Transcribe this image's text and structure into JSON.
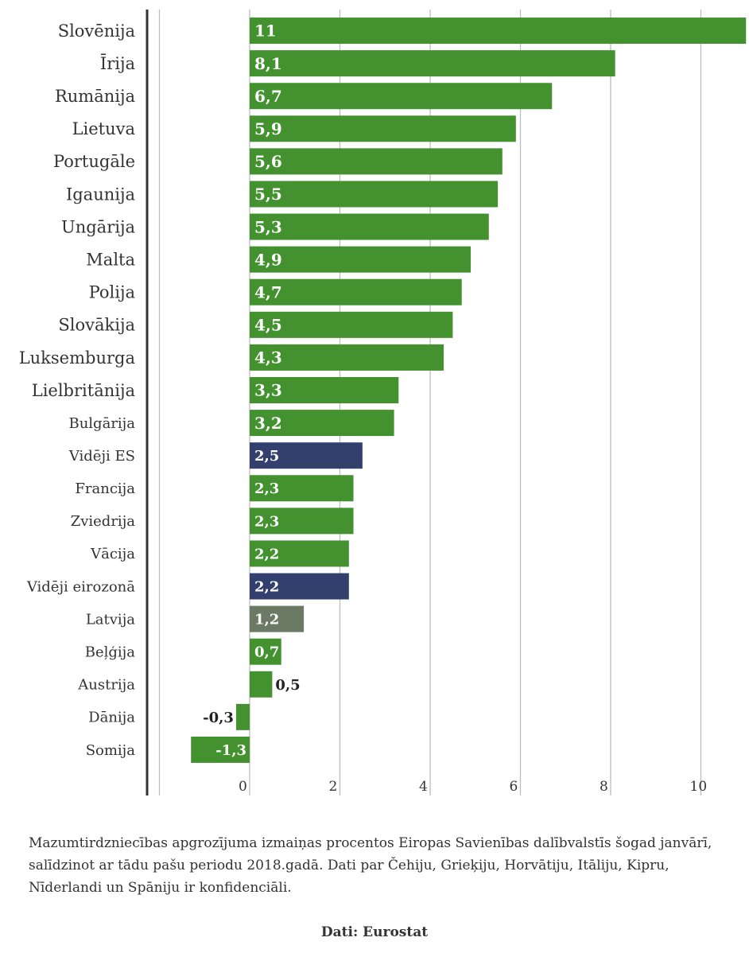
{
  "chart_data": {
    "type": "bar",
    "orientation": "horizontal",
    "categories": [
      "Slovēnija",
      "Īrija",
      "Rumānija",
      "Lietuva",
      "Portugāle",
      "Igaunija",
      "Ungārija",
      "Malta",
      "Polija",
      "Slovākija",
      "Luksemburga",
      "Lielbritānija",
      "Bulgārija",
      "Vidēji ES",
      "Francija",
      "Zviedrija",
      "Vācija",
      "Vidēji eirozonā",
      "Latvija",
      "Beļģija",
      "Austrija",
      "Dānija",
      "Somija"
    ],
    "values": [
      11,
      8.1,
      6.7,
      5.9,
      5.6,
      5.5,
      5.3,
      4.9,
      4.7,
      4.5,
      4.3,
      3.3,
      3.2,
      2.5,
      2.3,
      2.3,
      2.2,
      2.2,
      1.2,
      0.7,
      0.5,
      -0.3,
      -1.3
    ],
    "value_labels": [
      "11",
      "8,1",
      "6,7",
      "5,9",
      "5,6",
      "5,5",
      "5,3",
      "4,9",
      "4,7",
      "4,5",
      "4,3",
      "3,3",
      "3,2",
      "2,5",
      "2,3",
      "2,3",
      "2,2",
      "2,2",
      "1,2",
      "0,7",
      "0,5",
      "-0,3",
      "-1,3"
    ],
    "bar_colors": [
      "#43922f",
      "#43922f",
      "#43922f",
      "#43922f",
      "#43922f",
      "#43922f",
      "#43922f",
      "#43922f",
      "#43922f",
      "#43922f",
      "#43922f",
      "#43922f",
      "#43922f",
      "#33406e",
      "#43922f",
      "#43922f",
      "#43922f",
      "#33406e",
      "#6b7a65",
      "#43922f",
      "#43922f",
      "#43922f",
      "#43922f"
    ],
    "xticks": [
      0,
      2,
      4,
      6,
      8,
      10
    ],
    "xlim": [
      -2,
      11
    ],
    "grid": true,
    "title": "",
    "xlabel": "",
    "ylabel": ""
  },
  "caption": "Mazumtirdzniecības apgrozījuma izmaiņas procentos Eiropas Savienības dalībvalstīs šogad janvārī, salīdzinot ar tādu pašu periodu 2018.gadā. Dati par Čehiju, Grieķiju, Horvātiju, Itāliju, Kipru, Nīderlandi un Spāniju ir konfidenciāli.",
  "source": "Dati: Eurostat"
}
